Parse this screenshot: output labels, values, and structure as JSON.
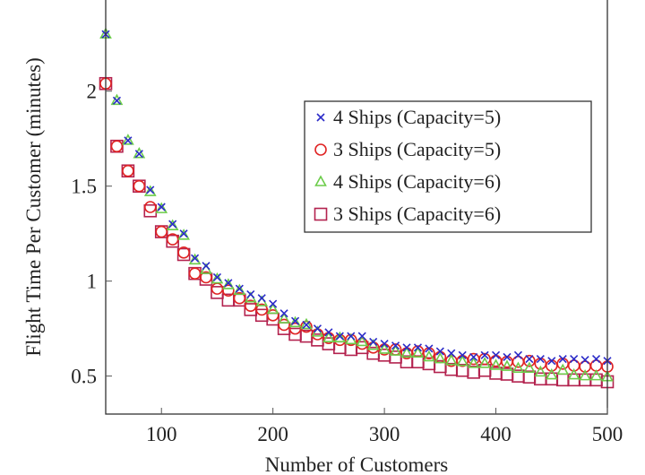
{
  "chart_data": {
    "type": "scatter",
    "title": "",
    "xlabel": "Number of Customers",
    "ylabel": "Flight Time Per Customer (minutes)",
    "xlim": [
      50,
      500
    ],
    "ylim": [
      0.3,
      2.48
    ],
    "xticks": [
      100,
      200,
      300,
      400,
      500
    ],
    "yticks": [
      0.5,
      1,
      1.5,
      2
    ],
    "ytick_labels": [
      "0.5",
      "1",
      "1.5",
      "2"
    ],
    "grid": false,
    "legend_position": "upper-right",
    "x": [
      50,
      60,
      70,
      80,
      90,
      100,
      110,
      120,
      130,
      140,
      150,
      160,
      170,
      180,
      190,
      200,
      210,
      220,
      230,
      240,
      250,
      260,
      270,
      280,
      290,
      300,
      310,
      320,
      330,
      340,
      350,
      360,
      370,
      380,
      390,
      400,
      410,
      420,
      430,
      440,
      450,
      460,
      470,
      480,
      490,
      500
    ],
    "series": [
      {
        "name": "4 Ships (Capacity=5)",
        "marker": "cross",
        "color": "#2b2bc8",
        "values": [
          2.3,
          1.95,
          1.74,
          1.67,
          1.48,
          1.39,
          1.3,
          1.25,
          1.12,
          1.08,
          1.02,
          0.99,
          0.96,
          0.93,
          0.91,
          0.88,
          0.83,
          0.79,
          0.77,
          0.75,
          0.73,
          0.71,
          0.71,
          0.71,
          0.68,
          0.67,
          0.66,
          0.65,
          0.65,
          0.645,
          0.63,
          0.62,
          0.61,
          0.6,
          0.61,
          0.61,
          0.6,
          0.61,
          0.59,
          0.59,
          0.58,
          0.59,
          0.59,
          0.585,
          0.59,
          0.58
        ]
      },
      {
        "name": "3 Ships (Capacity=5)",
        "marker": "circle",
        "color": "#e02424",
        "values": [
          2.04,
          1.71,
          1.58,
          1.5,
          1.39,
          1.26,
          1.22,
          1.15,
          1.04,
          1.02,
          0.96,
          0.95,
          0.91,
          0.87,
          0.85,
          0.82,
          0.77,
          0.75,
          0.76,
          0.72,
          0.7,
          0.69,
          0.69,
          0.67,
          0.65,
          0.64,
          0.64,
          0.62,
          0.63,
          0.62,
          0.6,
          0.58,
          0.58,
          0.59,
          0.59,
          0.58,
          0.575,
          0.575,
          0.58,
          0.565,
          0.555,
          0.565,
          0.555,
          0.55,
          0.555,
          0.55
        ]
      },
      {
        "name": "4 Ships (Capacity=6)",
        "marker": "triangle",
        "color": "#6ccc4a",
        "values": [
          2.3,
          1.95,
          1.74,
          1.67,
          1.47,
          1.38,
          1.29,
          1.24,
          1.11,
          1.06,
          1.01,
          0.98,
          0.95,
          0.91,
          0.89,
          0.85,
          0.8,
          0.78,
          0.77,
          0.73,
          0.7,
          0.7,
          0.69,
          0.68,
          0.66,
          0.64,
          0.63,
          0.62,
          0.62,
          0.6,
          0.59,
          0.58,
          0.575,
          0.565,
          0.565,
          0.555,
          0.55,
          0.54,
          0.54,
          0.52,
          0.505,
          0.53,
          0.505,
          0.5,
          0.5,
          0.495
        ]
      },
      {
        "name": "3 Ships (Capacity=6)",
        "marker": "square",
        "color": "#b3224e",
        "values": [
          2.04,
          1.71,
          1.58,
          1.5,
          1.37,
          1.26,
          1.21,
          1.14,
          1.04,
          1.01,
          0.94,
          0.9,
          0.9,
          0.85,
          0.82,
          0.8,
          0.75,
          0.72,
          0.71,
          0.69,
          0.67,
          0.65,
          0.64,
          0.65,
          0.62,
          0.61,
          0.6,
          0.575,
          0.575,
          0.565,
          0.55,
          0.535,
          0.53,
          0.52,
          0.53,
          0.515,
          0.51,
          0.5,
          0.495,
          0.485,
          0.485,
          0.48,
          0.48,
          0.48,
          0.48,
          0.47
        ]
      }
    ]
  }
}
